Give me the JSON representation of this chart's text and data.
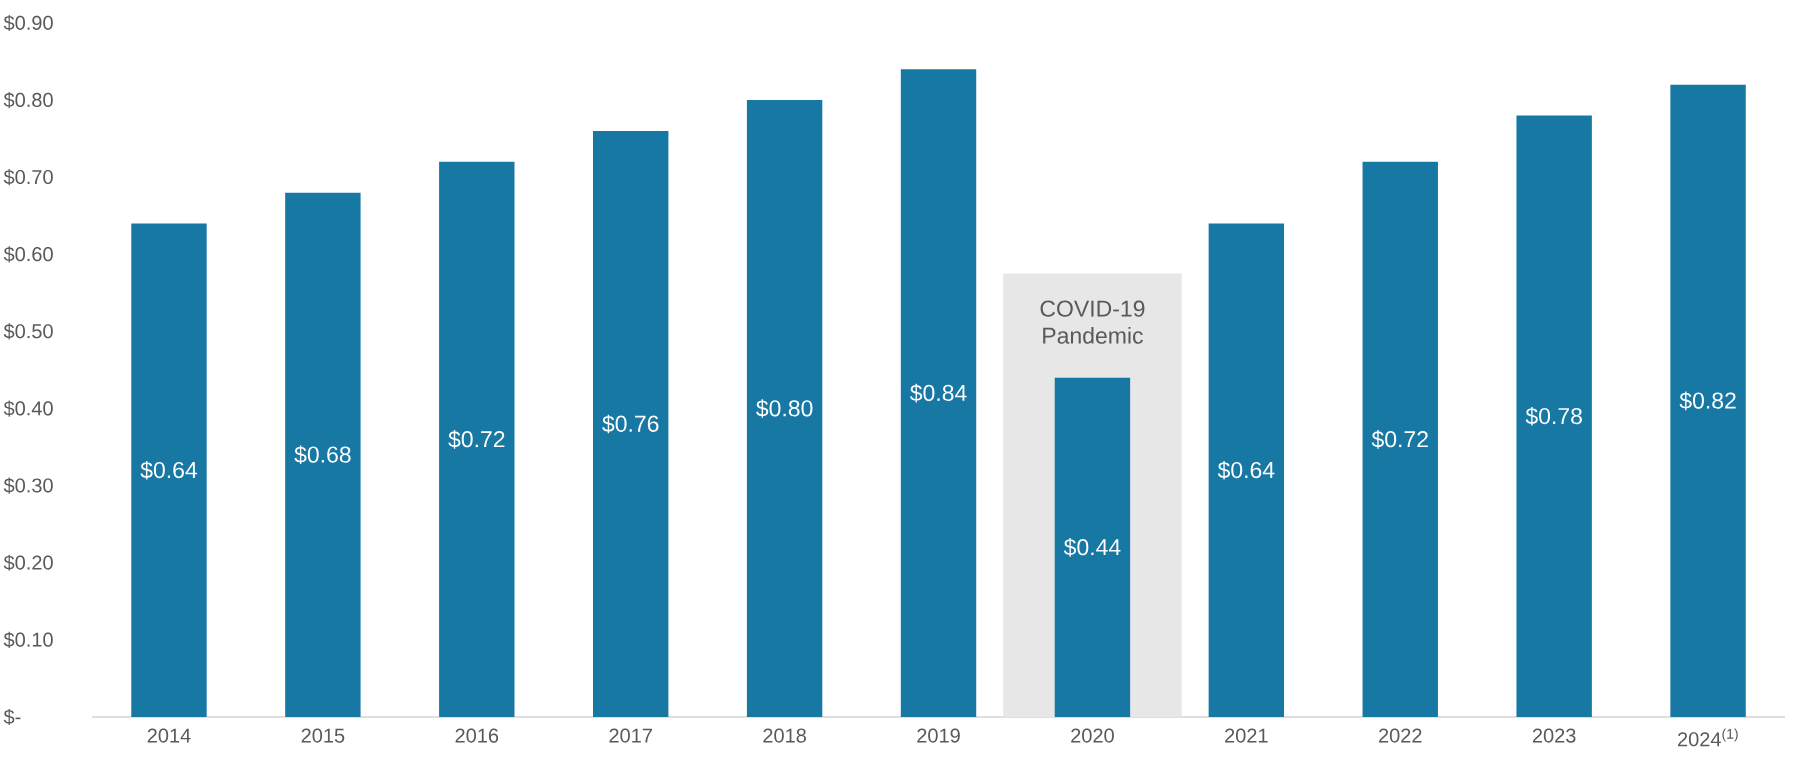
{
  "chart_data": {
    "type": "bar",
    "categories": [
      "2014",
      "2015",
      "2016",
      "2017",
      "2018",
      "2019",
      "2020",
      "2021",
      "2022",
      "2023",
      "2024$^{(1)}$"
    ],
    "values": [
      0.64,
      0.68,
      0.72,
      0.76,
      0.8,
      0.84,
      0.44,
      0.64,
      0.72,
      0.78,
      0.82
    ],
    "value_labels": [
      "$0.64",
      "$0.68",
      "$0.72",
      "$0.76",
      "$0.80",
      "$0.84",
      "$0.44",
      "$0.64",
      "$0.72",
      "$0.78",
      "$0.82"
    ],
    "color": "#1778a4",
    "ylim": [
      0,
      0.9
    ],
    "yticks": [
      {
        "value": 0,
        "label": "$-"
      },
      {
        "value": 0.1,
        "label": "$0.10"
      },
      {
        "value": 0.2,
        "label": "$0.20"
      },
      {
        "value": 0.3,
        "label": "$0.30"
      },
      {
        "value": 0.4,
        "label": "$0.40"
      },
      {
        "value": 0.5,
        "label": "$0.50"
      },
      {
        "value": 0.6,
        "label": "$0.60"
      },
      {
        "value": 0.7,
        "label": "$0.70"
      },
      {
        "value": 0.8,
        "label": "$0.80"
      },
      {
        "value": 0.9,
        "label": "$0.90"
      }
    ],
    "bands": [
      {
        "axis": "x",
        "from": "2020",
        "to": "2020",
        "label": "COVID-19 Pandemic",
        "color": "#e7e7e7"
      }
    ]
  }
}
